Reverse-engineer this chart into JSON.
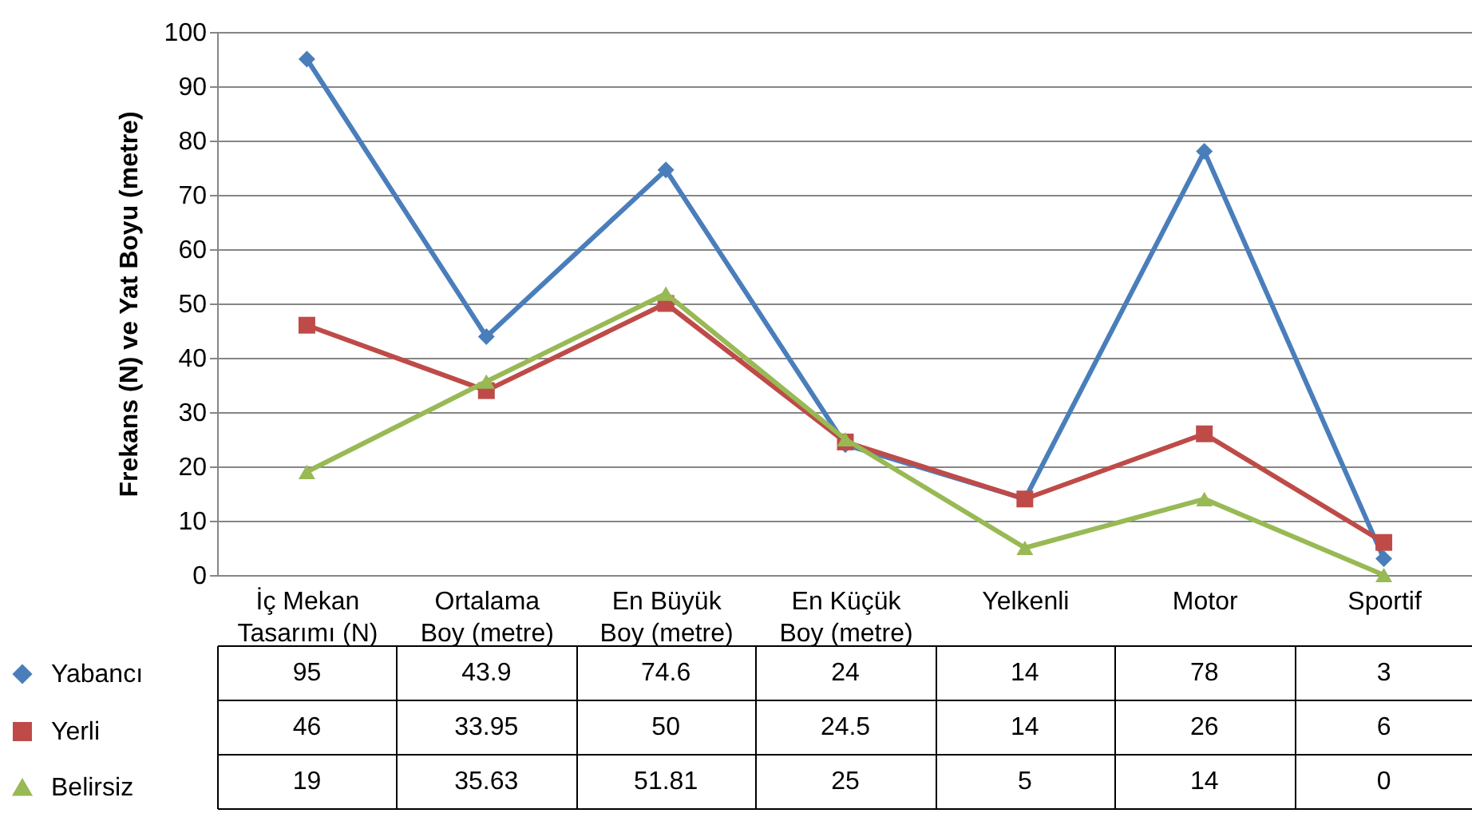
{
  "chart_data": {
    "type": "line",
    "ylabel": "Frekans (N) ve Yat Boyu (metre)",
    "categories": [
      "İç Mekan Tasarımı (N)",
      "Ortalama Boy (metre)",
      "En Büyük Boy (metre)",
      "En Küçük Boy (metre)",
      "Yelkenli",
      "Motor",
      "Sportif"
    ],
    "series": [
      {
        "name": "Yabancı",
        "color": "#4a7ebb",
        "marker": "diamond",
        "values": [
          95,
          43.9,
          74.6,
          24,
          14,
          78,
          3
        ]
      },
      {
        "name": "Yerli",
        "color": "#be4b48",
        "marker": "square",
        "values": [
          46,
          33.95,
          50,
          24.5,
          14,
          26,
          6
        ]
      },
      {
        "name": "Belirsiz",
        "color": "#98b954",
        "marker": "triangle",
        "values": [
          19,
          35.63,
          51.81,
          25,
          5,
          14,
          0
        ]
      }
    ],
    "ylim": [
      0,
      100
    ],
    "yticks": [
      0,
      10,
      20,
      30,
      40,
      50,
      60,
      70,
      80,
      90,
      100
    ],
    "grid": "y",
    "legend": "bottom left",
    "data_labels": true,
    "line_style": "solid"
  }
}
